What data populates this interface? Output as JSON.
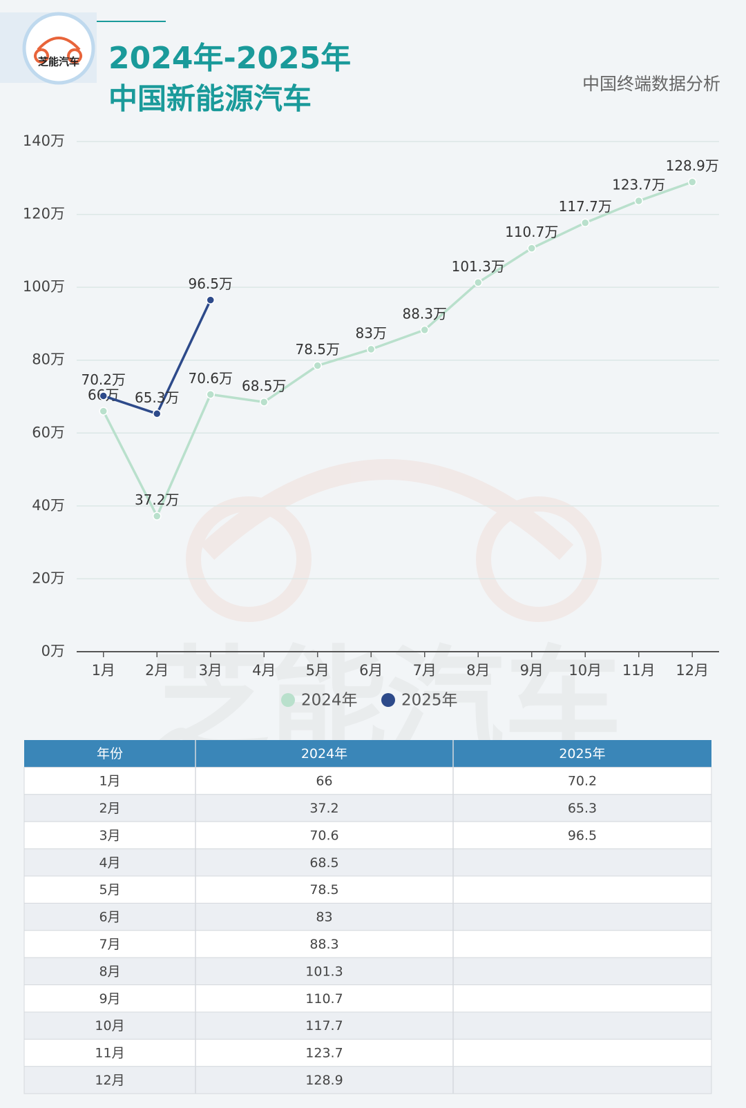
{
  "logo": {
    "text": "芝能汽车"
  },
  "chart_data": {
    "type": "line",
    "title": [
      "2024年-2025年",
      "中国新能源汽车"
    ],
    "subtitle": "中国终端数据分析",
    "categories": [
      "1月",
      "2月",
      "3月",
      "4月",
      "5月",
      "6月",
      "7月",
      "8月",
      "9月",
      "10月",
      "11月",
      "12月"
    ],
    "series": [
      {
        "name": "2024年",
        "color": "#b9e0cc",
        "values": [
          66,
          37.2,
          70.6,
          68.5,
          78.5,
          83,
          88.3,
          101.3,
          110.7,
          117.7,
          123.7,
          128.9
        ],
        "value_labels": [
          "66万",
          "37.2万",
          "70.6万",
          "68.5万",
          "78.5万",
          "83万",
          "88.3万",
          "101.3万",
          "110.7万",
          "117.7万",
          "123.7万",
          "128.9万"
        ]
      },
      {
        "name": "2025年",
        "color": "#2d4a8a",
        "values": [
          70.2,
          65.3,
          96.5,
          null,
          null,
          null,
          null,
          null,
          null,
          null,
          null,
          null
        ],
        "value_labels": [
          "70.2万",
          "65.3万",
          "96.5万",
          null,
          null,
          null,
          null,
          null,
          null,
          null,
          null,
          null
        ]
      }
    ],
    "ylim": [
      0,
      140
    ],
    "yticks": [
      {
        "value": 0,
        "label": "0万"
      },
      {
        "value": 20,
        "label": "20万"
      },
      {
        "value": 40,
        "label": "40万"
      },
      {
        "value": 60,
        "label": "60万"
      },
      {
        "value": 80,
        "label": "80万"
      },
      {
        "value": 100,
        "label": "100万"
      },
      {
        "value": 120,
        "label": "120万"
      },
      {
        "value": 140,
        "label": "140万"
      }
    ],
    "grid": true,
    "legend": "bottom"
  },
  "table": {
    "header": [
      "年份",
      "2024年",
      "2025年"
    ],
    "rows": [
      [
        "1月",
        "66",
        "70.2"
      ],
      [
        "2月",
        "37.2",
        "65.3"
      ],
      [
        "3月",
        "70.6",
        "96.5"
      ],
      [
        "4月",
        "68.5"
      ],
      [
        "5月",
        "78.5"
      ],
      [
        "6月",
        "83"
      ],
      [
        "7月",
        "88.3"
      ],
      [
        "8月",
        "101.3"
      ],
      [
        "9月",
        "110.7"
      ],
      [
        "10月",
        "117.7"
      ],
      [
        "11月",
        "123.7"
      ],
      [
        "12月",
        "128.9"
      ]
    ]
  }
}
